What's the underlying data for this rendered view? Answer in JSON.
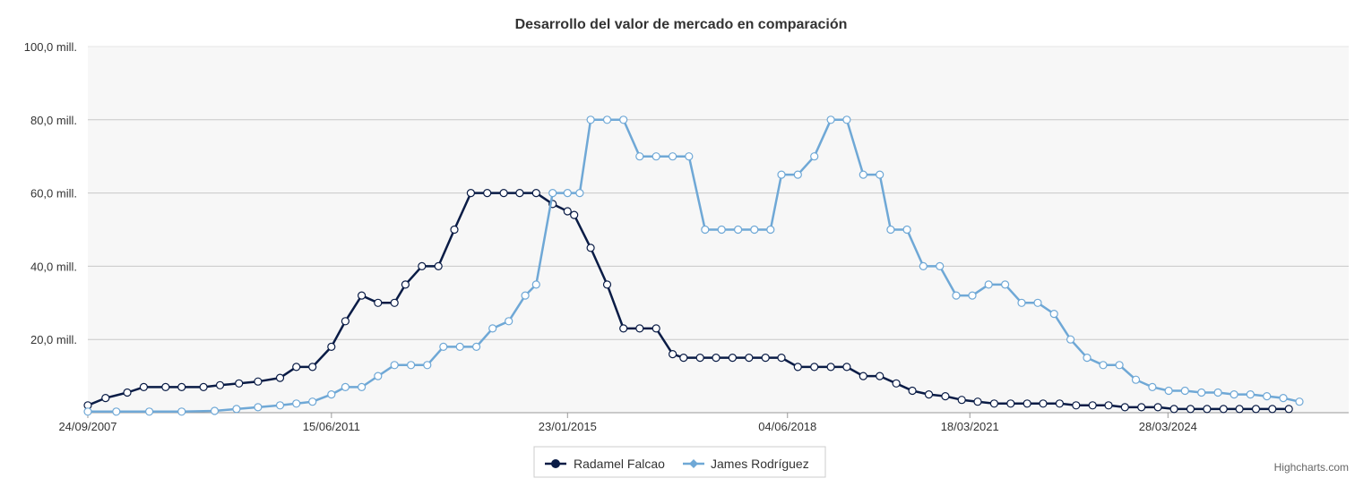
{
  "chart_data": {
    "type": "line",
    "title": "Desarrollo del valor de mercado en comparación",
    "xlabel": "",
    "ylabel": "",
    "ylim": [
      0,
      100
    ],
    "yticks": [
      {
        "value": 20,
        "label": "20,0 mill."
      },
      {
        "value": 40,
        "label": "40,0 mill."
      },
      {
        "value": 60,
        "label": "60,0 mill."
      },
      {
        "value": 80,
        "label": "80,0 mill."
      },
      {
        "value": 100,
        "label": "100,0 mill."
      }
    ],
    "xlim": [
      "2007-09-24",
      "2027-01-01"
    ],
    "xticks": [
      {
        "date": "2007-09-24",
        "label": "24/09/2007"
      },
      {
        "date": "2011-06-15",
        "label": "15/06/2011"
      },
      {
        "date": "2015-01-23",
        "label": "23/01/2015"
      },
      {
        "date": "2018-06-04",
        "label": "04/06/2018"
      },
      {
        "date": "2021-03-18",
        "label": "18/03/2021"
      },
      {
        "date": "2024-03-28",
        "label": "28/03/2024"
      }
    ],
    "grid": true,
    "legend_position": "bottom",
    "credits": "Highcharts.com",
    "series": [
      {
        "name": "Radamel Falcao",
        "color": "#0a1c46",
        "points": [
          [
            "2007-09-24",
            2
          ],
          [
            "2008-01-01",
            4
          ],
          [
            "2008-05-01",
            5.5
          ],
          [
            "2008-08-01",
            7
          ],
          [
            "2008-12-01",
            7
          ],
          [
            "2009-03-01",
            7
          ],
          [
            "2009-07-01",
            7
          ],
          [
            "2009-10-01",
            7.5
          ],
          [
            "2010-01-15",
            8
          ],
          [
            "2010-05-01",
            8.5
          ],
          [
            "2010-09-01",
            9.5
          ],
          [
            "2010-12-01",
            12.5
          ],
          [
            "2011-03-01",
            12.5
          ],
          [
            "2011-06-15",
            18
          ],
          [
            "2011-09-01",
            25
          ],
          [
            "2011-12-01",
            32
          ],
          [
            "2012-03-01",
            30
          ],
          [
            "2012-06-01",
            30
          ],
          [
            "2012-08-01",
            35
          ],
          [
            "2012-11-01",
            40
          ],
          [
            "2013-02-01",
            40
          ],
          [
            "2013-05-01",
            50
          ],
          [
            "2013-08-01",
            60
          ],
          [
            "2013-11-01",
            60
          ],
          [
            "2014-02-01",
            60
          ],
          [
            "2014-05-01",
            60
          ],
          [
            "2014-08-01",
            60
          ],
          [
            "2014-11-01",
            57
          ],
          [
            "2015-01-23",
            55
          ],
          [
            "2015-03-01",
            54
          ],
          [
            "2015-06-01",
            45
          ],
          [
            "2015-09-01",
            35
          ],
          [
            "2015-12-01",
            23
          ],
          [
            "2016-03-01",
            23
          ],
          [
            "2016-06-01",
            23
          ],
          [
            "2016-09-01",
            16
          ],
          [
            "2016-11-01",
            15
          ],
          [
            "2017-02-01",
            15
          ],
          [
            "2017-05-01",
            15
          ],
          [
            "2017-08-01",
            15
          ],
          [
            "2017-11-01",
            15
          ],
          [
            "2018-02-01",
            15
          ],
          [
            "2018-05-01",
            15
          ],
          [
            "2018-08-01",
            12.5
          ],
          [
            "2018-11-01",
            12.5
          ],
          [
            "2019-02-01",
            12.5
          ],
          [
            "2019-05-01",
            12.5
          ],
          [
            "2019-08-01",
            10
          ],
          [
            "2019-11-01",
            10
          ],
          [
            "2020-02-01",
            8
          ],
          [
            "2020-05-01",
            6
          ],
          [
            "2020-08-01",
            5
          ],
          [
            "2020-11-01",
            4.5
          ],
          [
            "2021-02-01",
            3.5
          ],
          [
            "2021-05-01",
            3
          ],
          [
            "2021-08-01",
            2.5
          ],
          [
            "2021-11-01",
            2.5
          ],
          [
            "2022-02-01",
            2.5
          ],
          [
            "2022-05-01",
            2.5
          ],
          [
            "2022-08-01",
            2.5
          ],
          [
            "2022-11-01",
            2
          ],
          [
            "2023-02-01",
            2
          ],
          [
            "2023-05-01",
            2
          ],
          [
            "2023-08-01",
            1.5
          ],
          [
            "2023-11-01",
            1.5
          ],
          [
            "2024-02-01",
            1.5
          ],
          [
            "2024-05-01",
            1
          ],
          [
            "2024-08-01",
            1
          ],
          [
            "2024-11-01",
            1
          ],
          [
            "2025-02-01",
            1
          ],
          [
            "2025-05-01",
            1
          ],
          [
            "2025-08-01",
            1
          ],
          [
            "2025-11-01",
            1
          ],
          [
            "2026-02-01",
            1
          ]
        ]
      },
      {
        "name": "James Rodríguez",
        "color": "#6fa8d6",
        "points": [
          [
            "2007-09-24",
            0.3
          ],
          [
            "2008-03-01",
            0.3
          ],
          [
            "2008-09-01",
            0.3
          ],
          [
            "2009-03-01",
            0.3
          ],
          [
            "2009-09-01",
            0.5
          ],
          [
            "2010-01-01",
            1
          ],
          [
            "2010-05-01",
            1.5
          ],
          [
            "2010-09-01",
            2
          ],
          [
            "2010-12-01",
            2.5
          ],
          [
            "2011-03-01",
            3
          ],
          [
            "2011-06-15",
            5
          ],
          [
            "2011-09-01",
            7
          ],
          [
            "2011-12-01",
            7
          ],
          [
            "2012-03-01",
            10
          ],
          [
            "2012-06-01",
            13
          ],
          [
            "2012-09-01",
            13
          ],
          [
            "2012-12-01",
            13
          ],
          [
            "2013-03-01",
            18
          ],
          [
            "2013-06-01",
            18
          ],
          [
            "2013-09-01",
            18
          ],
          [
            "2013-12-01",
            23
          ],
          [
            "2014-03-01",
            25
          ],
          [
            "2014-06-01",
            32
          ],
          [
            "2014-08-01",
            35
          ],
          [
            "2014-11-01",
            60
          ],
          [
            "2015-01-23",
            60
          ],
          [
            "2015-04-01",
            60
          ],
          [
            "2015-06-01",
            80
          ],
          [
            "2015-09-01",
            80
          ],
          [
            "2015-12-01",
            80
          ],
          [
            "2016-03-01",
            70
          ],
          [
            "2016-06-01",
            70
          ],
          [
            "2016-09-01",
            70
          ],
          [
            "2016-12-01",
            70
          ],
          [
            "2017-03-01",
            50
          ],
          [
            "2017-06-01",
            50
          ],
          [
            "2017-09-01",
            50
          ],
          [
            "2017-12-01",
            50
          ],
          [
            "2018-03-01",
            50
          ],
          [
            "2018-05-01",
            65
          ],
          [
            "2018-08-01",
            65
          ],
          [
            "2018-11-01",
            70
          ],
          [
            "2019-02-01",
            80
          ],
          [
            "2019-05-01",
            80
          ],
          [
            "2019-08-01",
            65
          ],
          [
            "2019-11-01",
            65
          ],
          [
            "2020-01-01",
            50
          ],
          [
            "2020-04-01",
            50
          ],
          [
            "2020-07-01",
            40
          ],
          [
            "2020-10-01",
            40
          ],
          [
            "2021-01-01",
            32
          ],
          [
            "2021-04-01",
            32
          ],
          [
            "2021-07-01",
            35
          ],
          [
            "2021-10-01",
            35
          ],
          [
            "2022-01-01",
            30
          ],
          [
            "2022-04-01",
            30
          ],
          [
            "2022-07-01",
            27
          ],
          [
            "2022-10-01",
            20
          ],
          [
            "2023-01-01",
            15
          ],
          [
            "2023-04-01",
            13
          ],
          [
            "2023-07-01",
            13
          ],
          [
            "2023-10-01",
            9
          ],
          [
            "2024-01-01",
            7
          ],
          [
            "2024-04-01",
            6
          ],
          [
            "2024-07-01",
            6
          ],
          [
            "2024-10-01",
            5.5
          ],
          [
            "2025-01-01",
            5.5
          ],
          [
            "2025-04-01",
            5
          ],
          [
            "2025-07-01",
            5
          ],
          [
            "2025-10-01",
            4.5
          ],
          [
            "2026-01-01",
            4
          ],
          [
            "2026-04-01",
            3
          ]
        ]
      }
    ]
  }
}
